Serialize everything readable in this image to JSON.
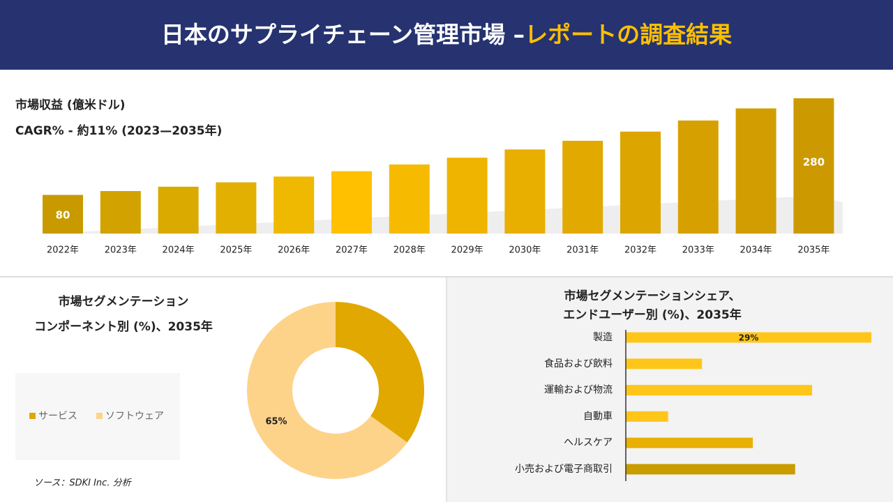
{
  "header": {
    "title": "日本のサプライチェーン管理市場 –",
    "highlight": "レポートの調査結果"
  },
  "source": "ソース：SDKI Inc. 分析",
  "chart_data": [
    {
      "type": "bar",
      "title": "市場収益 (億米ドル)",
      "subtitle": "CAGR% - 約11% (2023—2035年)",
      "categories": [
        "2022年",
        "2023年",
        "2024年",
        "2025年",
        "2026年",
        "2027年",
        "2028年",
        "2029年",
        "2030年",
        "2031年",
        "2032年",
        "2033年",
        "2034年",
        "2035年"
      ],
      "values": [
        80,
        88,
        97,
        106,
        118,
        129,
        143,
        157,
        174,
        192,
        211,
        234,
        259,
        280
      ],
      "value_labels": [
        "80",
        null,
        null,
        null,
        null,
        null,
        null,
        null,
        null,
        null,
        null,
        null,
        null,
        "280"
      ],
      "colors": [
        "#c89a00",
        "#d2a300",
        "#daaa00",
        "#e2b000",
        "#eeb900",
        "#ffc000",
        "#f6ba00",
        "#efb400",
        "#e8ae00",
        "#e2a900",
        "#dca500",
        "#d6a100",
        "#d19d00",
        "#cc9a00"
      ],
      "ylim": [
        0,
        290
      ]
    },
    {
      "type": "donut",
      "title": [
        "市場セグメンテーション",
        "コンポーネント別 (%)、2035年"
      ],
      "categories": [
        "サービス",
        "ソフトウェア"
      ],
      "values": [
        35,
        65
      ],
      "value_labels": [
        null,
        "65%"
      ],
      "colors": [
        "#e0a800",
        "#fdd38a"
      ]
    },
    {
      "type": "hbar",
      "title": [
        "市場セグメンテーションシェア、",
        "エンドユーザー別 (%)、2035年"
      ],
      "categories": [
        "製造",
        "食品および飲料",
        "運輸および物流",
        "自動車",
        "ヘルスケア",
        "小売および電子商取引"
      ],
      "values": [
        29,
        9,
        22,
        5,
        15,
        20
      ],
      "value_labels": [
        "29%",
        null,
        null,
        null,
        null,
        null
      ],
      "colors": [
        "#ffc61a",
        "#ffc61a",
        "#ffc61a",
        "#ffc61a",
        "#e8b000",
        "#c99c00"
      ],
      "xlim": [
        0,
        29
      ]
    }
  ]
}
